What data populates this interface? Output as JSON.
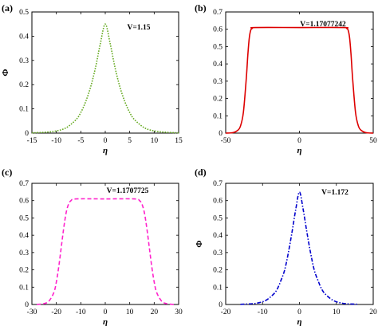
{
  "chart_data": [
    {
      "panel": "(a)",
      "type": "line",
      "annotation": "V=1.15",
      "xlabel": "η",
      "ylabel": "Φ",
      "xlim": [
        -15,
        15
      ],
      "ylim": [
        0,
        0.5
      ],
      "xticks": [
        -15,
        -10,
        -5,
        0,
        5,
        10,
        15
      ],
      "yticks": [
        0,
        0.1,
        0.2,
        0.3,
        0.4,
        0.5
      ],
      "ytick_labels": [
        "0",
        "0.1",
        "0.2",
        "0.3",
        "0.4",
        "0.5"
      ],
      "line_style": "dotted",
      "color": "#66aa22",
      "x": [
        -15,
        -12,
        -10,
        -8,
        -6,
        -5,
        -4,
        -3,
        -2,
        -1,
        0,
        1,
        2,
        3,
        4,
        5,
        6,
        8,
        10,
        12,
        15
      ],
      "y": [
        0.001,
        0.004,
        0.009,
        0.022,
        0.055,
        0.085,
        0.13,
        0.19,
        0.27,
        0.37,
        0.45,
        0.37,
        0.27,
        0.19,
        0.13,
        0.085,
        0.055,
        0.022,
        0.009,
        0.004,
        0.001
      ]
    },
    {
      "panel": "(b)",
      "type": "line",
      "annotation": "V=1.17077242",
      "xlabel": "η",
      "ylabel": "",
      "xlim": [
        -50,
        50
      ],
      "ylim": [
        0,
        0.7
      ],
      "xticks": [
        -50,
        0,
        50
      ],
      "yticks": [
        0,
        0.1,
        0.2,
        0.3,
        0.4,
        0.5,
        0.6,
        0.7
      ],
      "ytick_labels": [
        "0",
        "0.1",
        "0.2",
        "0.3",
        "0.4",
        "0.5",
        "0.6",
        "0.7"
      ],
      "line_style": "solid",
      "color": "#dd0000",
      "x": [
        -50,
        -45,
        -42,
        -40,
        -38,
        -36,
        -35,
        -34,
        -33,
        -32,
        -30,
        0,
        30,
        32,
        33,
        34,
        35,
        36,
        38,
        40,
        42,
        45,
        50
      ],
      "y": [
        0.0,
        0.003,
        0.015,
        0.04,
        0.12,
        0.32,
        0.45,
        0.55,
        0.595,
        0.605,
        0.61,
        0.61,
        0.61,
        0.605,
        0.595,
        0.55,
        0.45,
        0.32,
        0.12,
        0.04,
        0.015,
        0.003,
        0.0
      ]
    },
    {
      "panel": "(c)",
      "type": "line",
      "annotation": "V=1.1707725",
      "xlabel": "η",
      "ylabel": "",
      "xlim": [
        -30,
        30
      ],
      "ylim": [
        0,
        0.7
      ],
      "xticks": [
        -30,
        -20,
        -10,
        0,
        10,
        20,
        30
      ],
      "yticks": [
        0,
        0.1,
        0.2,
        0.3,
        0.4,
        0.5,
        0.6,
        0.7
      ],
      "ytick_labels": [
        "0",
        "0.1",
        "0.2",
        "0.3",
        "0.4",
        "0.5",
        "0.6",
        "0.7"
      ],
      "line_style": "dashed",
      "color": "#ff22cc",
      "x": [
        -28,
        -25,
        -23,
        -21,
        -20,
        -19,
        -18,
        -17,
        -16,
        -15,
        -14,
        -12,
        0,
        12,
        14,
        15,
        16,
        17,
        18,
        19,
        20,
        21,
        23,
        25,
        28
      ],
      "y": [
        0.0,
        0.005,
        0.02,
        0.07,
        0.13,
        0.22,
        0.33,
        0.44,
        0.53,
        0.58,
        0.6,
        0.61,
        0.61,
        0.61,
        0.6,
        0.58,
        0.53,
        0.44,
        0.33,
        0.22,
        0.13,
        0.07,
        0.02,
        0.005,
        0.0
      ]
    },
    {
      "panel": "(d)",
      "type": "line",
      "annotation": "V=1.172",
      "xlabel": "η",
      "ylabel": "Φ",
      "xlim": [
        -20,
        20
      ],
      "ylim": [
        0,
        0.7
      ],
      "xticks": [
        -20,
        -10,
        0,
        10,
        20
      ],
      "yticks": [
        0,
        0.1,
        0.2,
        0.3,
        0.4,
        0.5,
        0.6,
        0.7
      ],
      "ytick_labels": [
        "0",
        "0.1",
        "0.2",
        "0.3",
        "0.4",
        "0.5",
        "0.6",
        "0.7"
      ],
      "line_style": "dashdot",
      "color": "#0000cc",
      "x": [
        -16,
        -13,
        -11,
        -9,
        -7,
        -6,
        -5,
        -4,
        -3,
        -2,
        -1,
        0,
        1,
        2,
        3,
        4,
        5,
        6,
        7,
        9,
        11,
        13,
        16
      ],
      "y": [
        0.001,
        0.004,
        0.01,
        0.025,
        0.06,
        0.09,
        0.14,
        0.2,
        0.3,
        0.42,
        0.55,
        0.65,
        0.55,
        0.42,
        0.3,
        0.2,
        0.14,
        0.09,
        0.06,
        0.025,
        0.01,
        0.004,
        0.001
      ]
    }
  ]
}
